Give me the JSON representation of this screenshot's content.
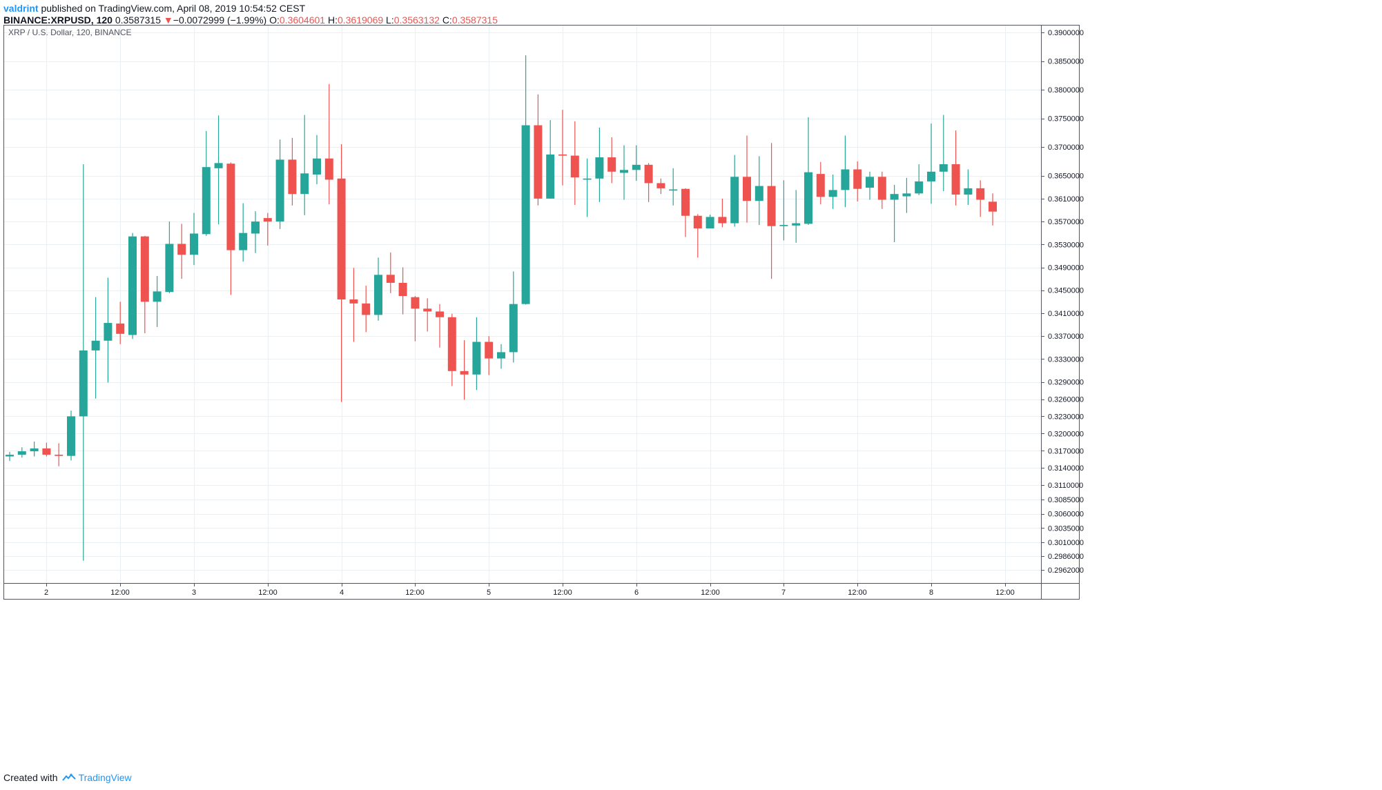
{
  "header": {
    "author": "valdrint",
    "published_text": "published on TradingView.com, April 08, 2019 10:54:52 CEST",
    "symbol": "BINANCE:XRPUSD, 120",
    "last": "0.3587315",
    "change_arrow": "▼",
    "change": "−0.0072999 (−1.99%)",
    "o_label": "O:",
    "o_value": "0.3604601",
    "h_label": "H:",
    "h_value": "0.3619069",
    "l_label": "L:",
    "l_value": "0.3563132",
    "c_label": "C:",
    "c_value": "0.3587315"
  },
  "footer": {
    "created_with": "Created with",
    "brand": "TradingView",
    "icon": "tradingview-logo-icon"
  },
  "colors": {
    "up": "#26a69a",
    "down": "#ef5350",
    "grid": "#e9eff3",
    "axis": "#50535e",
    "accent": "#2196f3"
  },
  "chart_data": {
    "type": "candlestick",
    "title": "XRP / U.S. Dollar, 120, BINANCE",
    "x_tick_labels": [
      "2",
      "12:00",
      "3",
      "12:00",
      "4",
      "12:00",
      "5",
      "12:00",
      "6",
      "12:00",
      "7",
      "12:00",
      "8",
      "12:00"
    ],
    "y_tick_labels": [
      "0.3900000",
      "0.3850000",
      "0.3800000",
      "0.3750000",
      "0.3700000",
      "0.3650000",
      "0.3610000",
      "0.3570000",
      "0.3530000",
      "0.3490000",
      "0.3450000",
      "0.3410000",
      "0.3370000",
      "0.3330000",
      "0.3290000",
      "0.3260000",
      "0.3230000",
      "0.3200000",
      "0.3170000",
      "0.3140000",
      "0.3110000",
      "0.3085000",
      "0.3060000",
      "0.3035000",
      "0.3010000",
      "0.2986000",
      "0.2962000"
    ],
    "candles": [
      {
        "o": 0.316,
        "h": 0.3168,
        "l": 0.3152,
        "c": 0.3163
      },
      {
        "o": 0.3163,
        "h": 0.3176,
        "l": 0.3158,
        "c": 0.3169
      },
      {
        "o": 0.3169,
        "h": 0.3186,
        "l": 0.316,
        "c": 0.3174
      },
      {
        "o": 0.3174,
        "h": 0.3184,
        "l": 0.316,
        "c": 0.3163
      },
      {
        "o": 0.3163,
        "h": 0.3183,
        "l": 0.3143,
        "c": 0.3161
      },
      {
        "o": 0.3161,
        "h": 0.324,
        "l": 0.3153,
        "c": 0.323
      },
      {
        "o": 0.323,
        "h": 0.367,
        "l": 0.2978,
        "c": 0.3345
      },
      {
        "o": 0.3345,
        "h": 0.3438,
        "l": 0.3261,
        "c": 0.3362
      },
      {
        "o": 0.3362,
        "h": 0.3472,
        "l": 0.3289,
        "c": 0.3393
      },
      {
        "o": 0.3392,
        "h": 0.343,
        "l": 0.3356,
        "c": 0.3374
      },
      {
        "o": 0.3372,
        "h": 0.355,
        "l": 0.3365,
        "c": 0.3544
      },
      {
        "o": 0.3544,
        "h": 0.3545,
        "l": 0.3375,
        "c": 0.343
      },
      {
        "o": 0.343,
        "h": 0.3475,
        "l": 0.3386,
        "c": 0.3448
      },
      {
        "o": 0.3447,
        "h": 0.357,
        "l": 0.3445,
        "c": 0.3531
      },
      {
        "o": 0.3531,
        "h": 0.3566,
        "l": 0.347,
        "c": 0.3512
      },
      {
        "o": 0.3512,
        "h": 0.3585,
        "l": 0.3494,
        "c": 0.3549
      },
      {
        "o": 0.3548,
        "h": 0.3728,
        "l": 0.3545,
        "c": 0.3665
      },
      {
        "o": 0.3663,
        "h": 0.3755,
        "l": 0.3565,
        "c": 0.3672
      },
      {
        "o": 0.3671,
        "h": 0.3673,
        "l": 0.3442,
        "c": 0.352
      },
      {
        "o": 0.352,
        "h": 0.3602,
        "l": 0.35,
        "c": 0.355
      },
      {
        "o": 0.3549,
        "h": 0.3588,
        "l": 0.3515,
        "c": 0.357
      },
      {
        "o": 0.3576,
        "h": 0.3585,
        "l": 0.3528,
        "c": 0.357
      },
      {
        "o": 0.357,
        "h": 0.3713,
        "l": 0.3557,
        "c": 0.3678
      },
      {
        "o": 0.3678,
        "h": 0.3716,
        "l": 0.3598,
        "c": 0.3618
      },
      {
        "o": 0.3618,
        "h": 0.3756,
        "l": 0.3581,
        "c": 0.3654
      },
      {
        "o": 0.3652,
        "h": 0.3721,
        "l": 0.3635,
        "c": 0.368
      },
      {
        "o": 0.368,
        "h": 0.381,
        "l": 0.36,
        "c": 0.3643
      },
      {
        "o": 0.3645,
        "h": 0.3705,
        "l": 0.3255,
        "c": 0.3434
      },
      {
        "o": 0.3434,
        "h": 0.3489,
        "l": 0.336,
        "c": 0.3427
      },
      {
        "o": 0.3427,
        "h": 0.3458,
        "l": 0.3377,
        "c": 0.3407
      },
      {
        "o": 0.3407,
        "h": 0.3507,
        "l": 0.3397,
        "c": 0.3477
      },
      {
        "o": 0.3477,
        "h": 0.3516,
        "l": 0.3445,
        "c": 0.3463
      },
      {
        "o": 0.3463,
        "h": 0.349,
        "l": 0.3408,
        "c": 0.344
      },
      {
        "o": 0.3438,
        "h": 0.344,
        "l": 0.3361,
        "c": 0.3418
      },
      {
        "o": 0.3418,
        "h": 0.3436,
        "l": 0.3378,
        "c": 0.3413
      },
      {
        "o": 0.3413,
        "h": 0.3426,
        "l": 0.335,
        "c": 0.3403
      },
      {
        "o": 0.3403,
        "h": 0.3409,
        "l": 0.3283,
        "c": 0.3309
      },
      {
        "o": 0.3309,
        "h": 0.3363,
        "l": 0.3259,
        "c": 0.3303
      },
      {
        "o": 0.3303,
        "h": 0.3403,
        "l": 0.3276,
        "c": 0.336
      },
      {
        "o": 0.336,
        "h": 0.337,
        "l": 0.3302,
        "c": 0.3331
      },
      {
        "o": 0.3331,
        "h": 0.3356,
        "l": 0.3313,
        "c": 0.3342
      },
      {
        "o": 0.3342,
        "h": 0.3483,
        "l": 0.3324,
        "c": 0.3426
      },
      {
        "o": 0.3426,
        "h": 0.386,
        "l": 0.3425,
        "c": 0.3738
      },
      {
        "o": 0.3738,
        "h": 0.3792,
        "l": 0.3598,
        "c": 0.361
      },
      {
        "o": 0.361,
        "h": 0.3747,
        "l": 0.361,
        "c": 0.3687
      },
      {
        "o": 0.3687,
        "h": 0.3765,
        "l": 0.3633,
        "c": 0.3685
      },
      {
        "o": 0.3685,
        "h": 0.3745,
        "l": 0.3599,
        "c": 0.3647
      },
      {
        "o": 0.3643,
        "h": 0.368,
        "l": 0.3578,
        "c": 0.3645
      },
      {
        "o": 0.3645,
        "h": 0.3734,
        "l": 0.3604,
        "c": 0.3682
      },
      {
        "o": 0.3682,
        "h": 0.3717,
        "l": 0.3637,
        "c": 0.3657
      },
      {
        "o": 0.3655,
        "h": 0.3703,
        "l": 0.3608,
        "c": 0.366
      },
      {
        "o": 0.366,
        "h": 0.3703,
        "l": 0.3641,
        "c": 0.3669
      },
      {
        "o": 0.3669,
        "h": 0.3672,
        "l": 0.3604,
        "c": 0.3637
      },
      {
        "o": 0.3637,
        "h": 0.3645,
        "l": 0.3618,
        "c": 0.3628
      },
      {
        "o": 0.3624,
        "h": 0.3663,
        "l": 0.3598,
        "c": 0.3626
      },
      {
        "o": 0.3627,
        "h": 0.3628,
        "l": 0.3543,
        "c": 0.358
      },
      {
        "o": 0.358,
        "h": 0.3583,
        "l": 0.3507,
        "c": 0.3558
      },
      {
        "o": 0.3558,
        "h": 0.3582,
        "l": 0.356,
        "c": 0.3578
      },
      {
        "o": 0.3578,
        "h": 0.361,
        "l": 0.356,
        "c": 0.3567
      },
      {
        "o": 0.3567,
        "h": 0.3686,
        "l": 0.3561,
        "c": 0.3648
      },
      {
        "o": 0.3648,
        "h": 0.372,
        "l": 0.3568,
        "c": 0.3606
      },
      {
        "o": 0.3606,
        "h": 0.3684,
        "l": 0.3564,
        "c": 0.3632
      },
      {
        "o": 0.3632,
        "h": 0.3707,
        "l": 0.347,
        "c": 0.3562
      },
      {
        "o": 0.3562,
        "h": 0.3642,
        "l": 0.3537,
        "c": 0.3564
      },
      {
        "o": 0.3563,
        "h": 0.3625,
        "l": 0.3533,
        "c": 0.3567
      },
      {
        "o": 0.3566,
        "h": 0.3752,
        "l": 0.3564,
        "c": 0.3656
      },
      {
        "o": 0.3653,
        "h": 0.3674,
        "l": 0.36,
        "c": 0.3613
      },
      {
        "o": 0.3613,
        "h": 0.3652,
        "l": 0.3592,
        "c": 0.3625
      },
      {
        "o": 0.3625,
        "h": 0.372,
        "l": 0.3595,
        "c": 0.3661
      },
      {
        "o": 0.3661,
        "h": 0.3675,
        "l": 0.3605,
        "c": 0.3627
      },
      {
        "o": 0.3629,
        "h": 0.3657,
        "l": 0.3608,
        "c": 0.3648
      },
      {
        "o": 0.3648,
        "h": 0.3657,
        "l": 0.3592,
        "c": 0.3608
      },
      {
        "o": 0.3608,
        "h": 0.3634,
        "l": 0.3534,
        "c": 0.3618
      },
      {
        "o": 0.3614,
        "h": 0.3646,
        "l": 0.3585,
        "c": 0.3619
      },
      {
        "o": 0.3619,
        "h": 0.367,
        "l": 0.3616,
        "c": 0.364
      },
      {
        "o": 0.364,
        "h": 0.3741,
        "l": 0.3601,
        "c": 0.3657
      },
      {
        "o": 0.3657,
        "h": 0.3756,
        "l": 0.3623,
        "c": 0.367
      },
      {
        "o": 0.367,
        "h": 0.3729,
        "l": 0.3598,
        "c": 0.3617
      },
      {
        "o": 0.3617,
        "h": 0.3661,
        "l": 0.3599,
        "c": 0.3628
      },
      {
        "o": 0.3628,
        "h": 0.3642,
        "l": 0.3578,
        "c": 0.3608
      },
      {
        "o": 0.36046,
        "h": 0.36191,
        "l": 0.35631,
        "c": 0.35873
      }
    ]
  }
}
